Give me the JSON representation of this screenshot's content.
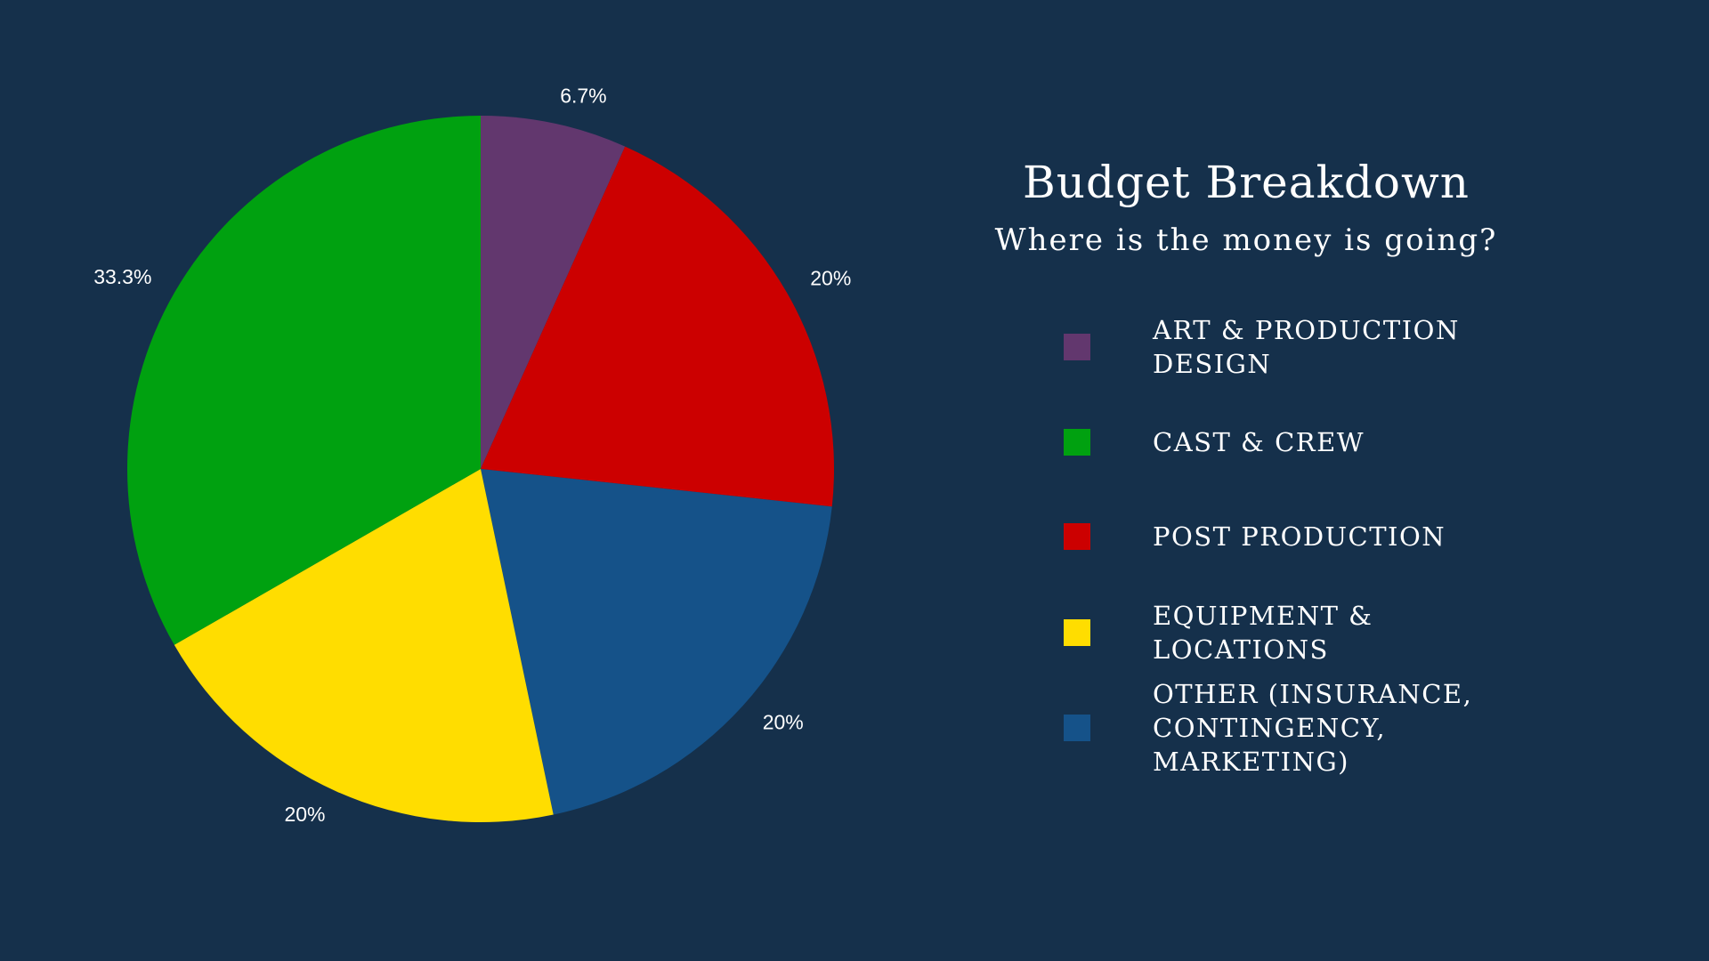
{
  "slide": {
    "background": "#15304b"
  },
  "header": {
    "title": "Budget Breakdown",
    "subtitle": "Where is the money is going?"
  },
  "chart_data": {
    "type": "pie",
    "title": "",
    "slices": [
      {
        "label": "ART & PRODUCTION DESIGN",
        "value": 6.7,
        "value_label": "6.7%",
        "color": "#62376e"
      },
      {
        "label": "POST PRODUCTION",
        "value": 20,
        "value_label": "20%",
        "color": "#cc0000"
      },
      {
        "label": "OTHER (INSURANCE, CONTINGENCY, MARKETING)",
        "value": 20,
        "value_label": "20%",
        "color": "#155289"
      },
      {
        "label": "EQUIPMENT & LOCATIONS",
        "value": 20,
        "value_label": "20%",
        "color": "#ffdd00"
      },
      {
        "label": "CAST & CREW",
        "value": 33.3,
        "value_label": "33.3%",
        "color": "#00a110"
      }
    ],
    "legend_position": "right",
    "legend": [
      {
        "label": "ART & PRODUCTION DESIGN",
        "color": "#62376e"
      },
      {
        "label": "CAST & CREW",
        "color": "#00a110"
      },
      {
        "label": "POST PRODUCTION",
        "color": "#cc0000"
      },
      {
        "label": "EQUIPMENT & LOCATIONS",
        "color": "#ffdd00"
      },
      {
        "label": "OTHER (INSURANCE, CONTINGENCY, MARKETING)",
        "color": "#155289"
      }
    ]
  }
}
